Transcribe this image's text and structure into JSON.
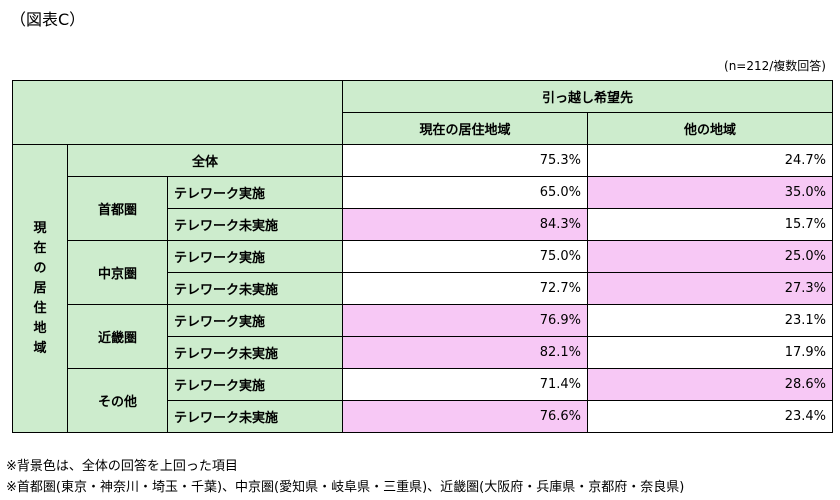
{
  "figure_label": "（図表C）",
  "sample_note": "(n=212/複数回答)",
  "header": {
    "top": "引っ越し希望先",
    "col1": "現在の居住地域",
    "col2": "他の地域"
  },
  "side_label": [
    "現",
    "在",
    "の",
    "居",
    "住",
    "地",
    "域"
  ],
  "total": {
    "label": "全体",
    "current": "75.3%",
    "other": "24.7%"
  },
  "regions": [
    {
      "name": "首都圏",
      "rows": [
        {
          "label": "テレワーク実施",
          "current": "65.0%",
          "other": "35.0%",
          "hl_current": false,
          "hl_other": true
        },
        {
          "label": "テレワーク未実施",
          "current": "84.3%",
          "other": "15.7%",
          "hl_current": true,
          "hl_other": false
        }
      ]
    },
    {
      "name": "中京圏",
      "rows": [
        {
          "label": "テレワーク実施",
          "current": "75.0%",
          "other": "25.0%",
          "hl_current": false,
          "hl_other": true
        },
        {
          "label": "テレワーク未実施",
          "current": "72.7%",
          "other": "27.3%",
          "hl_current": false,
          "hl_other": true
        }
      ]
    },
    {
      "name": "近畿圏",
      "rows": [
        {
          "label": "テレワーク実施",
          "current": "76.9%",
          "other": "23.1%",
          "hl_current": true,
          "hl_other": false
        },
        {
          "label": "テレワーク未実施",
          "current": "82.1%",
          "other": "17.9%",
          "hl_current": true,
          "hl_other": false
        }
      ]
    },
    {
      "name": "その他",
      "rows": [
        {
          "label": "テレワーク実施",
          "current": "71.4%",
          "other": "28.6%",
          "hl_current": false,
          "hl_other": true
        },
        {
          "label": "テレワーク未実施",
          "current": "76.6%",
          "other": "23.4%",
          "hl_current": true,
          "hl_other": false
        }
      ]
    }
  ],
  "footnotes": [
    "※背景色は、全体の回答を上回った項目",
    "※首都圏(東京・神奈川・埼玉・千葉)、中京圏(愛知県・岐阜県・三重県)、近畿圏(大阪府・兵庫県・京都府・奈良県)"
  ],
  "colors": {
    "header_bg": "#cdeccd",
    "highlight": "#f7c8f5"
  }
}
